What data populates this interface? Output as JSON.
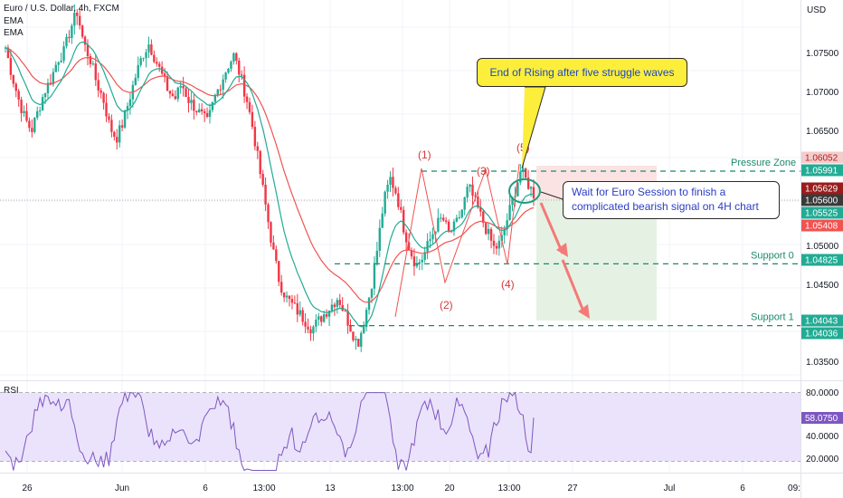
{
  "header": {
    "title": "Euro / U.S. Dollar, 4h, FXCM",
    "indicators": [
      "EMA",
      "EMA"
    ],
    "currency": "USD"
  },
  "price_axis": {
    "ticks": [
      "1.07500",
      "1.07000",
      "1.06500",
      "1.05000",
      "1.04500",
      "1.03500"
    ]
  },
  "price_tags": [
    {
      "label": "1.06052",
      "color": "#f4cccc",
      "text_color": "#b71c1c"
    },
    {
      "label": "1.05991",
      "color": "#22ab94",
      "text_color": "#ffffff"
    },
    {
      "label": "1.05629",
      "color": "#9b1c1c",
      "text_color": "#ffffff"
    },
    {
      "label": "1.05600",
      "color": "#3a3a3a",
      "text_color": "#ffffff"
    },
    {
      "label": "1.05525",
      "color": "#22ab94",
      "text_color": "#ffffff"
    },
    {
      "label": "1.05408",
      "color": "#f05350",
      "text_color": "#ffffff"
    },
    {
      "label": "1.04825",
      "color": "#22ab94",
      "text_color": "#ffffff"
    },
    {
      "label": "1.04043",
      "color": "#22ab94",
      "text_color": "#ffffff"
    },
    {
      "label": "1.04036",
      "color": "#22ab94",
      "text_color": "#ffffff"
    }
  ],
  "rsi_axis": {
    "ticks": [
      "80.0000",
      "60.0000",
      "40.0000",
      "20.0000"
    ],
    "current": "58.0750"
  },
  "time_axis": {
    "labels": [
      "26",
      "Jun",
      "6",
      "13:00",
      "13",
      "13:00",
      "20",
      "13:00",
      "27",
      "Jul",
      "6",
      "09:"
    ]
  },
  "levels": [
    {
      "name": "Pressure Zone",
      "value": 1.0599
    },
    {
      "name": "Support 0",
      "value": 1.0482
    },
    {
      "name": "Support 1",
      "value": 1.0404
    }
  ],
  "wave_labels": [
    "(1)",
    "(2)",
    "(3)",
    "(4)",
    "(5)"
  ],
  "annotations": {
    "top": "End of Rising after five struggle waves",
    "side_line1": "Wait for Euro Session to finish a",
    "side_line2": "complicated bearish signal on 4H chart"
  },
  "rsi_label": "RSI",
  "colors": {
    "up": "#22ab94",
    "down": "#f23645",
    "ema_fast": "#22ab94",
    "ema_slow": "#f05350",
    "rsi_line": "#7e57c2",
    "rsi_band": "#ebe3fb",
    "stop_zone": "#fbe3e3",
    "target_zone": "#e5f2e3"
  },
  "chart_data": {
    "type": "candlestick",
    "symbol": "Euro / U.S. Dollar",
    "timeframe": "4h",
    "ylim": [
      1.0335,
      1.0815
    ],
    "x_labels": [
      "26",
      "Jun",
      "6",
      "13:00",
      "13",
      "13:00",
      "20",
      "13:00",
      "27",
      "Jul",
      "6",
      "09:"
    ],
    "close_path": [
      1.0755,
      1.072,
      1.069,
      1.0665,
      1.065,
      1.0675,
      1.07,
      1.0715,
      1.074,
      1.075,
      1.078,
      1.08,
      1.076,
      1.074,
      1.071,
      1.069,
      1.0655,
      1.064,
      1.066,
      1.069,
      1.072,
      1.0745,
      1.076,
      1.074,
      1.072,
      1.07,
      1.069,
      1.071,
      1.069,
      1.068,
      1.067,
      1.066,
      1.069,
      1.071,
      1.073,
      1.0745,
      1.072,
      1.069,
      1.065,
      1.06,
      1.055,
      1.05,
      1.046,
      1.044,
      1.043,
      1.042,
      1.041,
      1.04,
      1.041,
      1.042,
      1.043,
      1.044,
      1.042,
      1.04,
      1.038,
      1.041,
      1.045,
      1.05,
      1.056,
      1.059,
      1.057,
      1.053,
      1.05,
      1.048,
      1.049,
      1.051,
      1.053,
      1.054,
      1.052,
      1.053,
      1.055,
      1.058,
      1.056,
      1.054,
      1.052,
      1.05,
      1.051,
      1.054,
      1.057,
      1.06,
      1.0585,
      1.057
    ],
    "series": [
      {
        "name": "EMA"
      },
      {
        "name": "EMA"
      },
      {
        "name": "RSI",
        "last": 58.075
      }
    ],
    "levels": {
      "pressure_zone": 1.0599,
      "support_0": 1.0482,
      "support_1": 1.0404
    },
    "rsi_range": [
      10,
      90
    ]
  }
}
